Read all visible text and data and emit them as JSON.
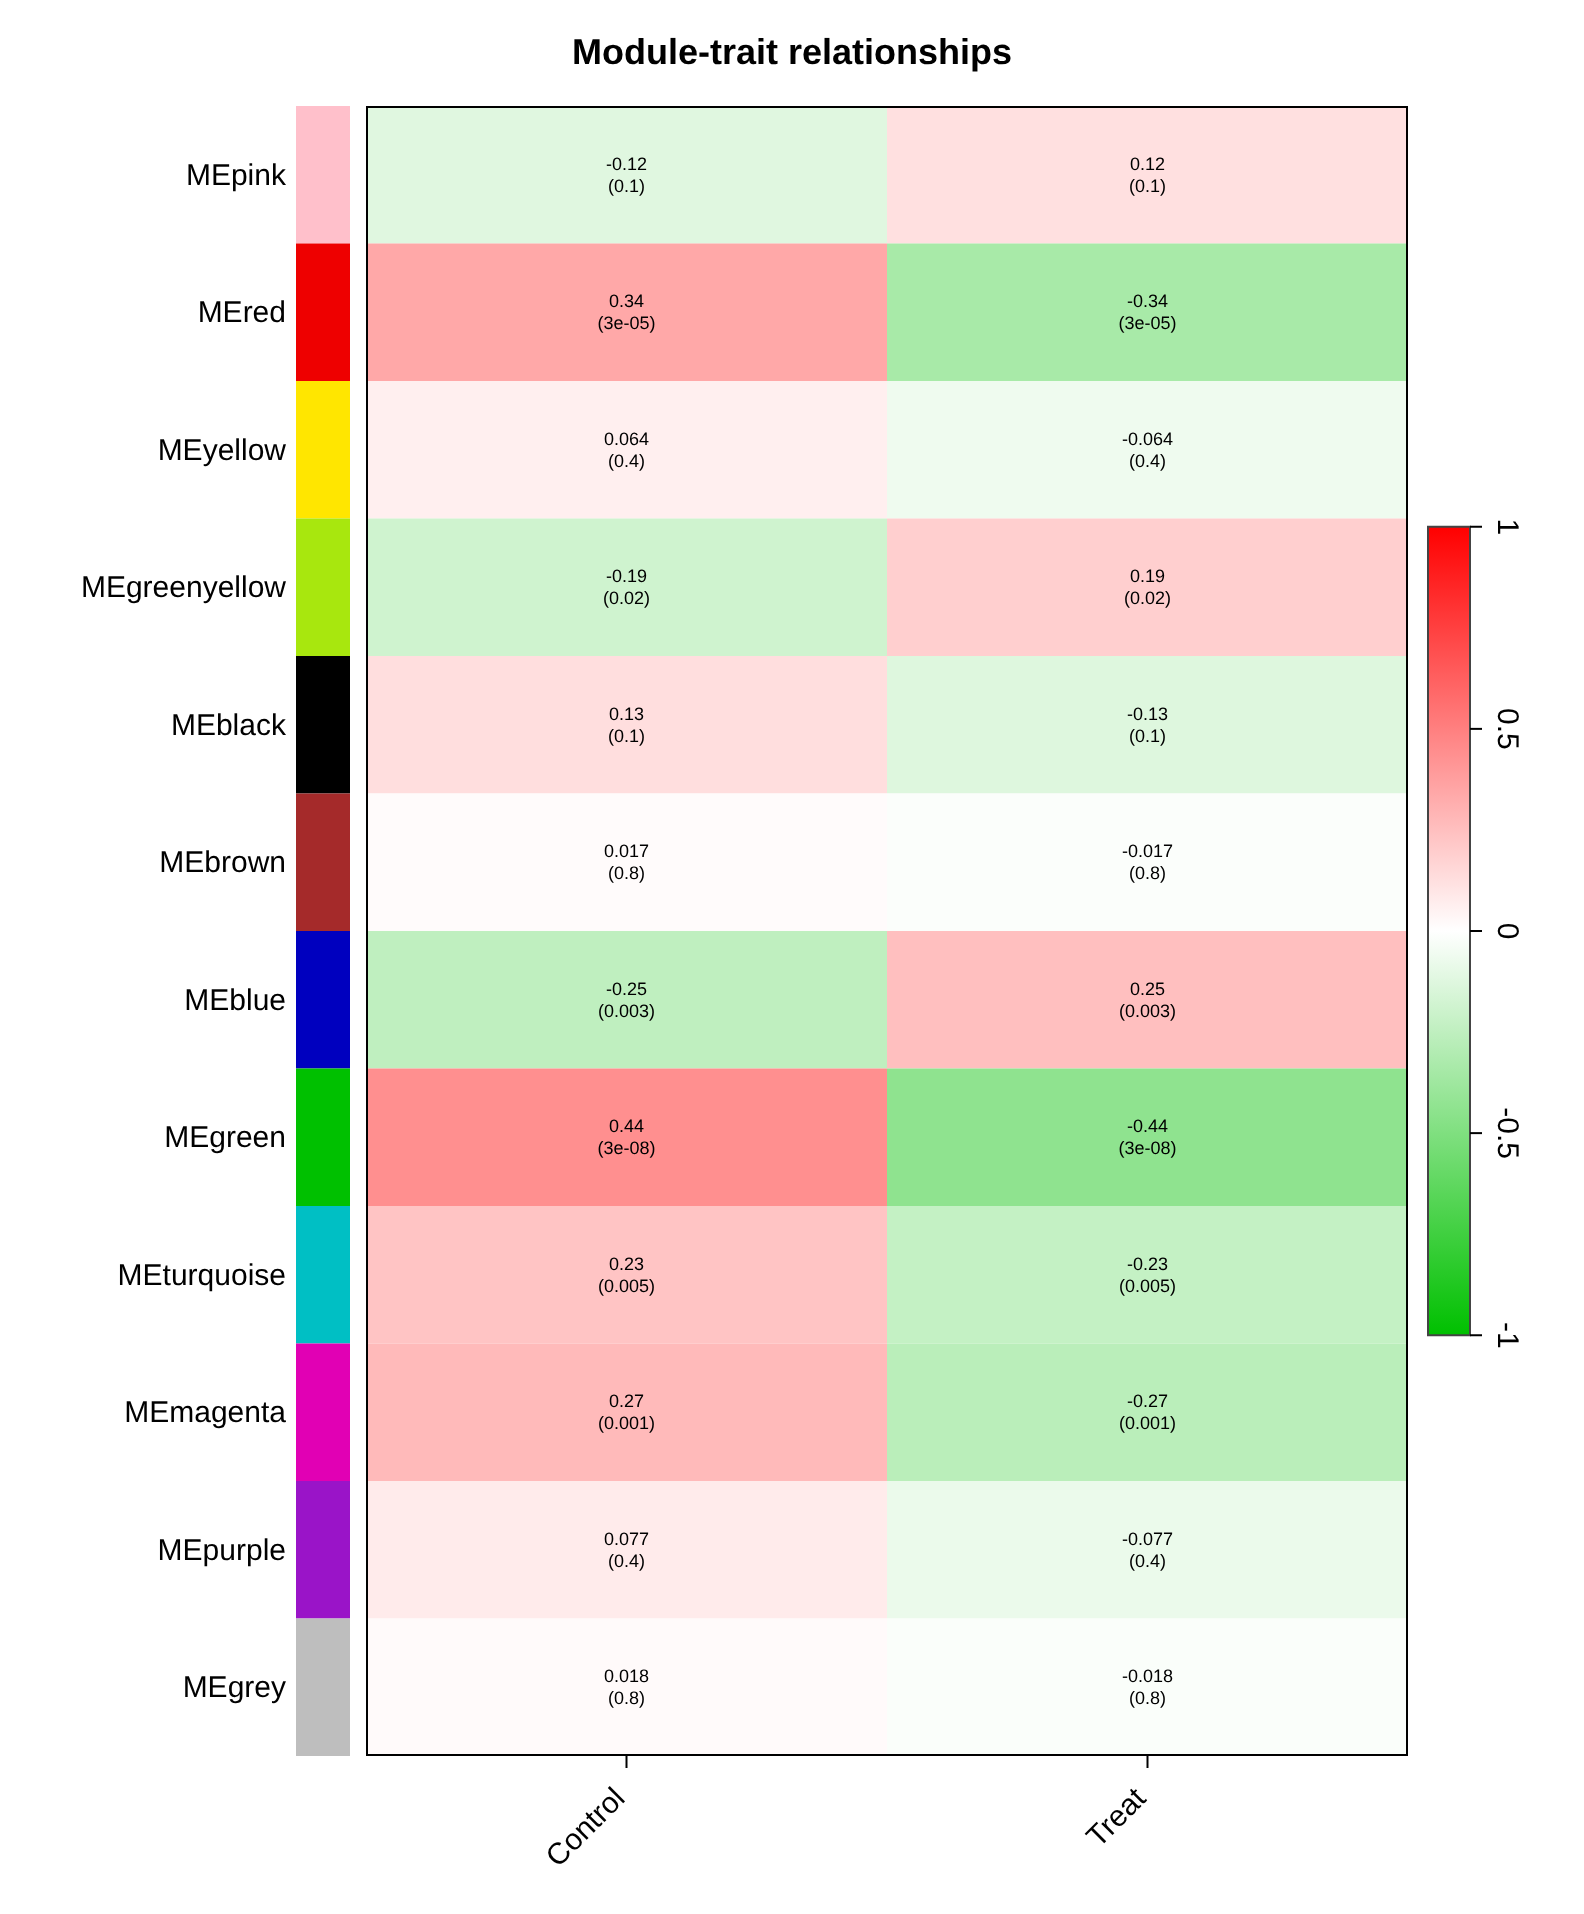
{
  "chart_data": {
    "type": "heatmap",
    "title": "Module-trait relationships",
    "categories": [
      "Control",
      "Treat"
    ],
    "y_categories": [
      "MEpink",
      "MEred",
      "MEyellow",
      "MEgreenyellow",
      "MEblack",
      "MEbrown",
      "MEblue",
      "MEgreen",
      "MEturquoise",
      "MEmagenta",
      "MEpurple",
      "MEgrey"
    ],
    "colors": [
      "#ffc0cb",
      "#ee0000",
      "#ffe600",
      "#a8e70e",
      "#000000",
      "#a52a2a",
      "#0000bf",
      "#00c000",
      "#00bfc4",
      "#e100b4",
      "#9a14c8",
      "#bebebe"
    ],
    "cells": [
      [
        -0.12,
        0.12
      ],
      [
        0.34,
        -0.34
      ],
      [
        0.064,
        -0.064
      ],
      [
        -0.19,
        0.19
      ],
      [
        0.13,
        -0.13
      ],
      [
        0.017,
        -0.017
      ],
      [
        -0.25,
        0.25
      ],
      [
        0.44,
        -0.44
      ],
      [
        0.23,
        -0.23
      ],
      [
        0.27,
        -0.27
      ],
      [
        0.077,
        -0.077
      ],
      [
        0.018,
        -0.018
      ]
    ],
    "cell_labels": [
      [
        "-0.12\n(0.1)",
        "0.12\n(0.1)"
      ],
      [
        "0.34\n(3e-05)",
        "-0.34\n(3e-05)"
      ],
      [
        "0.064\n(0.4)",
        "-0.064\n(0.4)"
      ],
      [
        "-0.19\n(0.02)",
        "0.19\n(0.02)"
      ],
      [
        "0.13\n(0.1)",
        "-0.13\n(0.1)"
      ],
      [
        "0.017\n(0.8)",
        "-0.017\n(0.8)"
      ],
      [
        "-0.25\n(0.003)",
        "0.25\n(0.003)"
      ],
      [
        "0.44\n(3e-08)",
        "-0.44\n(3e-08)"
      ],
      [
        "0.23\n(0.005)",
        "-0.23\n(0.005)"
      ],
      [
        "0.27\n(0.001)",
        "-0.27\n(0.001)"
      ],
      [
        "0.077\n(0.4)",
        "-0.077\n(0.4)"
      ],
      [
        "0.018\n(0.8)",
        "-0.018\n(0.8)"
      ]
    ],
    "clim": [
      -1,
      1
    ],
    "cticks": [
      -1,
      -0.5,
      0,
      0.5,
      1
    ]
  }
}
